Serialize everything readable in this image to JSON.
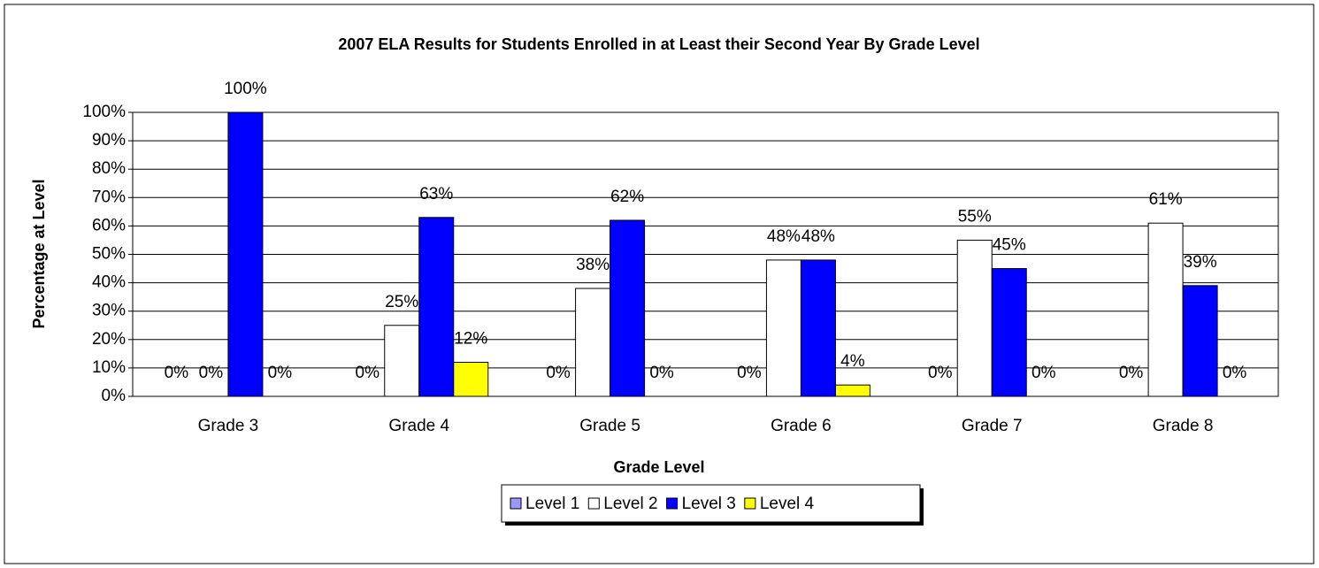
{
  "chart_data": {
    "type": "bar",
    "title": "2007 ELA Results for Students Enrolled in at Least their Second Year By Grade Level",
    "x_label": "Grade Level",
    "y_label": "Percentage at Level",
    "categories": [
      "Grade 3",
      "Grade 4",
      "Grade 5",
      "Grade 6",
      "Grade 7",
      "Grade 8"
    ],
    "series": [
      {
        "name": "Level 1",
        "color": "#9999ff",
        "values": [
          0,
          0,
          0,
          0,
          0,
          0
        ],
        "value_labels": [
          "0%",
          "0%",
          "0%",
          "0%",
          "0%",
          "0%"
        ]
      },
      {
        "name": "Level 2",
        "color": "#ffffff",
        "values": [
          0,
          25,
          38,
          48,
          55,
          61
        ],
        "value_labels": [
          "0%",
          "25%",
          "38%",
          "48%",
          "55%",
          "61%"
        ]
      },
      {
        "name": "Level 3",
        "color": "#0000ff",
        "values": [
          100,
          63,
          62,
          48,
          45,
          39
        ],
        "value_labels": [
          "100%",
          "63%",
          "62%",
          "48%",
          "45%",
          "39%"
        ]
      },
      {
        "name": "Level 4",
        "color": "#ffff00",
        "values": [
          0,
          12,
          0,
          4,
          0,
          0
        ],
        "value_labels": [
          "0%",
          "12%",
          "0%",
          "4%",
          "0%",
          "0%"
        ]
      }
    ],
    "ylim": [
      0,
      100
    ],
    "yticks": [
      {
        "value": 0,
        "label": "0%"
      },
      {
        "value": 10,
        "label": "10%"
      },
      {
        "value": 20,
        "label": "20%"
      },
      {
        "value": 30,
        "label": "30%"
      },
      {
        "value": 40,
        "label": "40%"
      },
      {
        "value": 50,
        "label": "50%"
      },
      {
        "value": 60,
        "label": "60%"
      },
      {
        "value": 70,
        "label": "70%"
      },
      {
        "value": 80,
        "label": "80%"
      },
      {
        "value": 90,
        "label": "90%"
      },
      {
        "value": 100,
        "label": "100%"
      }
    ],
    "grid": true,
    "legend": "bottom"
  }
}
